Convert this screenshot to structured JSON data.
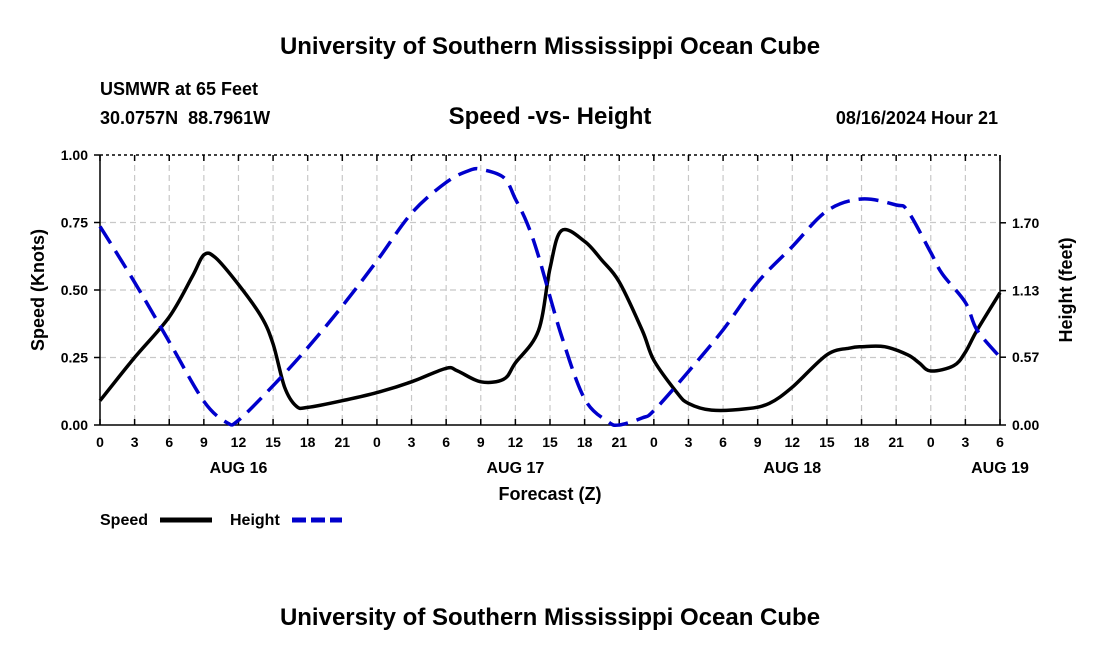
{
  "chart_data": {
    "type": "line",
    "title": "University of Southern Mississippi Ocean Cube",
    "footer_title": "University of Southern Mississippi Ocean Cube",
    "subtitle": "Speed -vs- Height",
    "station": "USMWR at 65 Feet",
    "location": "30.0757N  88.7961W",
    "timestamp": "08/16/2024 Hour 21",
    "xlabel": "Forecast (Z)",
    "ylabel": "Speed (Knots)",
    "y2label": "Height (feet)",
    "x_tick_labels": [
      "0",
      "3",
      "6",
      "9",
      "12",
      "15",
      "18",
      "21",
      "0",
      "3",
      "6",
      "9",
      "12",
      "15",
      "18",
      "21",
      "0",
      "3",
      "6",
      "9",
      "12",
      "15",
      "18",
      "21",
      "0",
      "3",
      "6"
    ],
    "date_labels": [
      {
        "label": "AUG 16",
        "at_hour": 12
      },
      {
        "label": "AUG 17",
        "at_hour": 36
      },
      {
        "label": "AUG 18",
        "at_hour": 60
      },
      {
        "label": "AUG 19",
        "at_hour": 78
      }
    ],
    "xlim": [
      0,
      78
    ],
    "ylim": [
      0,
      1.0
    ],
    "y_ticks": [
      "0.00",
      "0.25",
      "0.50",
      "0.75",
      "1.00"
    ],
    "y2lim": [
      0,
      2.27
    ],
    "y2_ticks": [
      "0.00",
      "0.57",
      "1.13",
      "1.70"
    ],
    "series": [
      {
        "name": "Speed",
        "color": "#000000",
        "axis": "left",
        "x": [
          0,
          3,
          6,
          8,
          9,
          10,
          12,
          14,
          15,
          16,
          17,
          18,
          21,
          24,
          27,
          30,
          31,
          33,
          35,
          36,
          38,
          39,
          40,
          42,
          43.5,
          45,
          47,
          48,
          50,
          51,
          53,
          56,
          58,
          60,
          63,
          65,
          66,
          68,
          70,
          71,
          72,
          74,
          75,
          76,
          78
        ],
        "values": [
          0.09,
          0.25,
          0.4,
          0.55,
          0.63,
          0.62,
          0.52,
          0.4,
          0.3,
          0.14,
          0.07,
          0.065,
          0.09,
          0.12,
          0.16,
          0.21,
          0.2,
          0.16,
          0.17,
          0.23,
          0.35,
          0.58,
          0.72,
          0.68,
          0.61,
          0.53,
          0.35,
          0.24,
          0.12,
          0.08,
          0.055,
          0.06,
          0.08,
          0.14,
          0.26,
          0.285,
          0.29,
          0.29,
          0.26,
          0.23,
          0.2,
          0.22,
          0.27,
          0.35,
          0.49
        ]
      },
      {
        "name": "Height",
        "color": "#0000cc",
        "axis": "right",
        "x": [
          0,
          3,
          6,
          9,
          11,
          12,
          15,
          18,
          21,
          24,
          27,
          30,
          32,
          33,
          35,
          36,
          37,
          38,
          40,
          42,
          44,
          45,
          47,
          48,
          51,
          54,
          57,
          60,
          63,
          66,
          69,
          70,
          72,
          73,
          75,
          76,
          78
        ],
        "values": [
          1.67,
          1.2,
          0.7,
          0.2,
          0.02,
          0.04,
          0.33,
          0.65,
          1.0,
          1.38,
          1.78,
          2.04,
          2.14,
          2.15,
          2.08,
          1.9,
          1.7,
          1.42,
          0.75,
          0.22,
          0.03,
          0.0,
          0.06,
          0.12,
          0.45,
          0.8,
          1.2,
          1.5,
          1.8,
          1.9,
          1.85,
          1.8,
          1.45,
          1.27,
          1.03,
          0.8,
          0.57
        ]
      }
    ],
    "legend": [
      {
        "label": "Speed",
        "color": "#000000",
        "style": "solid"
      },
      {
        "label": "Height",
        "color": "#0000cc",
        "style": "dashed"
      }
    ],
    "grid": true,
    "legend_position": "bottom-left"
  }
}
